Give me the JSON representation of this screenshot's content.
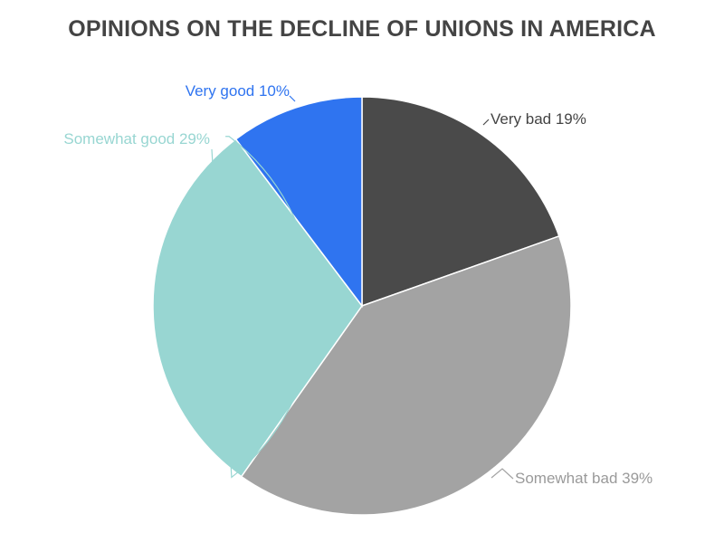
{
  "chart_data": {
    "type": "pie",
    "title": "OPINIONS ON THE DECLINE OF UNIONS IN AMERICA",
    "slices": [
      {
        "name": "Very bad",
        "value": 19,
        "label": "Very bad 19%",
        "color": "#4a4a4a",
        "label_color": "#444444"
      },
      {
        "name": "Somewhat bad",
        "value": 39,
        "label": "Somewhat bad 39%",
        "color": "#a3a3a3",
        "label_color": "#9a9a9a"
      },
      {
        "name": "Somewhat good",
        "value": 29,
        "label": "Somewhat good 29%",
        "color": "#98d6d2",
        "label_color": "#98d6d2"
      },
      {
        "name": "Very good",
        "value": 10,
        "label": "Very good 10%",
        "color": "#2f74f0",
        "label_color": "#2f74f0"
      }
    ]
  }
}
